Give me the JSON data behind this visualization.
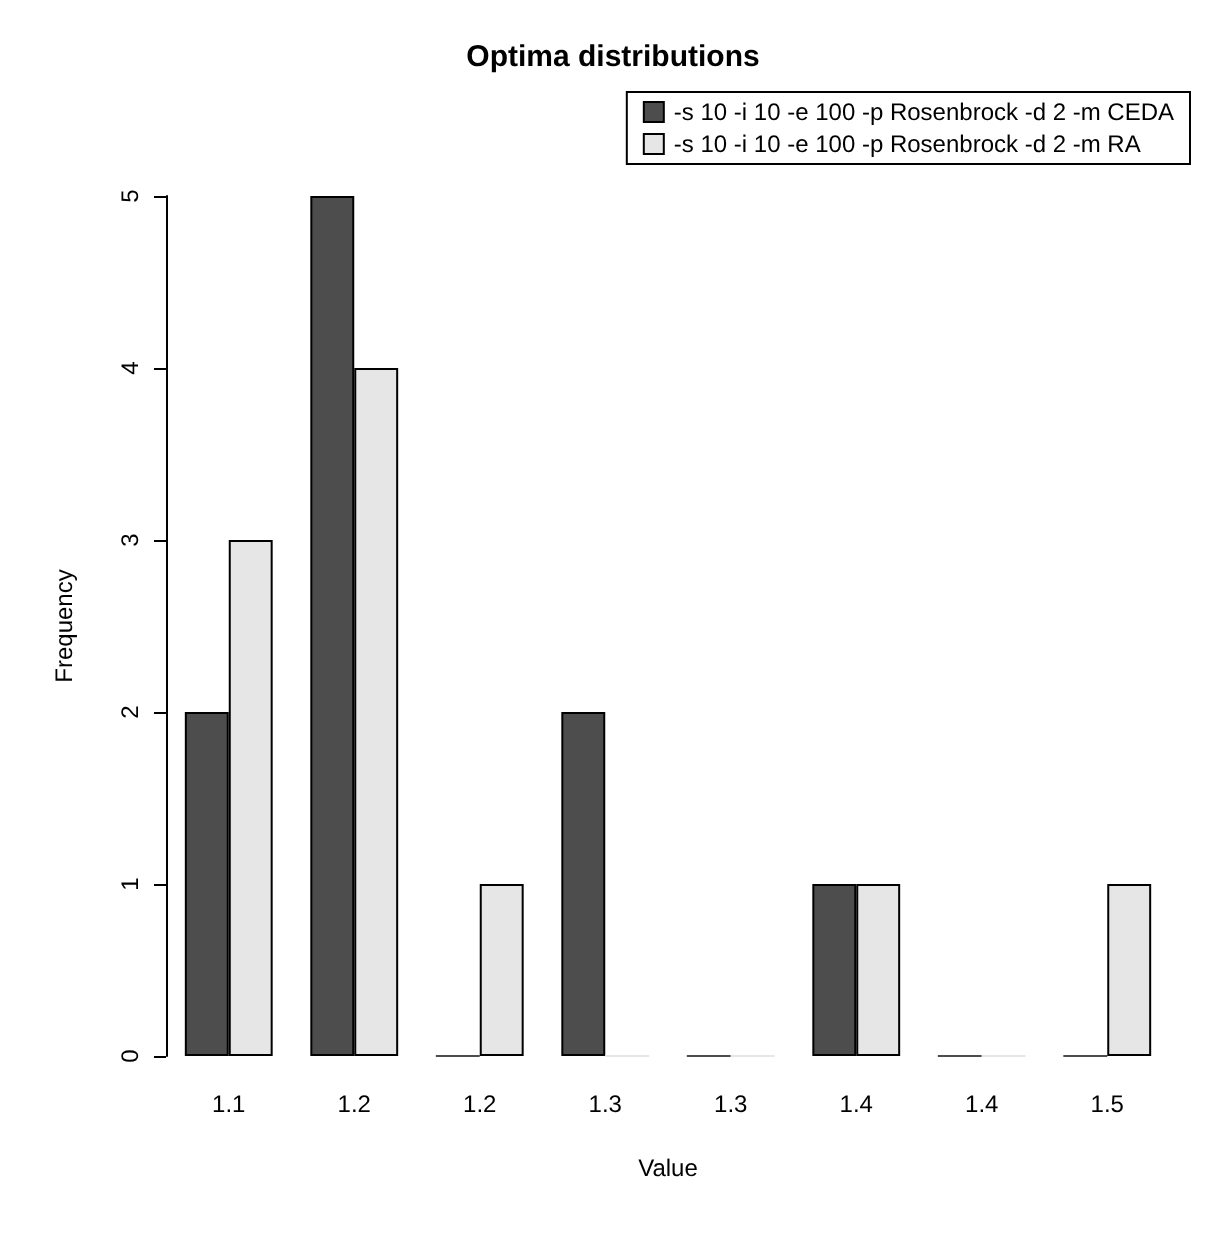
{
  "chart_data": {
    "type": "bar",
    "title": "Optima distributions",
    "xlabel": "Value",
    "ylabel": "Frequency",
    "categories": [
      "1.1",
      "1.2",
      "1.2",
      "1.3",
      "1.3",
      "1.4",
      "1.4",
      "1.5"
    ],
    "series": [
      {
        "name": "-s 10 -i 10 -e 100 -p Rosenbrock -d 2 -m CEDA",
        "color": "#4d4d4d",
        "values": [
          2,
          5,
          0,
          2,
          0,
          1,
          0,
          0
        ]
      },
      {
        "name": "-s 10 -i 10 -e 100 -p Rosenbrock -d 2 -m RA",
        "color": "#e6e6e6",
        "values": [
          3,
          4,
          1,
          0,
          0,
          1,
          0,
          1
        ]
      }
    ],
    "ylim": [
      0,
      5
    ],
    "yticks": [
      0,
      1,
      2,
      3,
      4,
      5
    ],
    "grid": false,
    "legend": "top right"
  }
}
